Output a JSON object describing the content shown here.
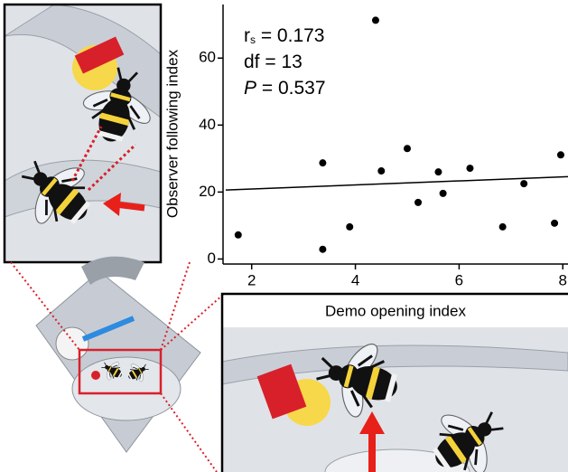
{
  "chart_data": {
    "type": "scatter",
    "x_label": "Demo opening index",
    "y_label": "Observer following index",
    "annotations": [
      {
        "main": "r",
        "sub": "s",
        "rest": " = 0.173"
      },
      {
        "main": "df",
        "rest": " = 13"
      },
      {
        "main": "P",
        "rest": " = 0.537"
      }
    ],
    "x": [
      1.74,
      3.37,
      3.37,
      3.89,
      4.39,
      4.5,
      5.0,
      5.21,
      5.6,
      5.69,
      6.21,
      7.25,
      6.84,
      7.84,
      7.96
    ],
    "values": [
      7.2,
      28.7,
      2.9,
      9.6,
      71.3,
      26.3,
      33.0,
      16.9,
      26.0,
      19.6,
      27.1,
      22.5,
      9.6,
      10.7,
      31.1
    ],
    "color": "#000000",
    "trend": {
      "x": [
        1.5,
        8.1
      ],
      "y": [
        20.6,
        24.6
      ]
    },
    "xlim": [
      1.5,
      8.1
    ],
    "xticks": [
      2,
      4,
      6,
      8
    ],
    "ylim": [
      -1.5,
      76
    ],
    "yticks": [
      0,
      20,
      40,
      60
    ]
  }
}
